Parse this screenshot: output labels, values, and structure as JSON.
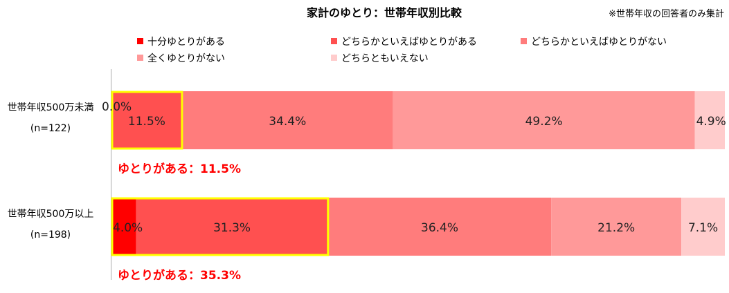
{
  "chart_data": {
    "type": "bar",
    "orientation": "horizontal-stacked-100",
    "title": "家計のゆとり：世帯年収別比較",
    "note": "※世帯年収の回答者のみ集計",
    "categories": [
      {
        "name": "世帯年収500万未満",
        "n": "(n=122)"
      },
      {
        "name": "世帯年収500万以上",
        "n": "(n=198)"
      }
    ],
    "series": [
      {
        "name": "十分ゆとりがある",
        "color": "#ff0000",
        "values": [
          0.0,
          4.0
        ]
      },
      {
        "name": "どちらかといえばゆとりがある",
        "color": "#ff5050",
        "values": [
          11.5,
          31.3
        ]
      },
      {
        "name": "どちらかといえばゆとりがない",
        "color": "#ff7c7c",
        "values": [
          34.4,
          36.4
        ]
      },
      {
        "name": "全くゆとりがない",
        "color": "#ff9999",
        "values": [
          49.2,
          21.2
        ]
      },
      {
        "name": "どちらともいえない",
        "color": "#ffcccc",
        "values": [
          4.9,
          7.1
        ]
      }
    ],
    "value_labels": [
      [
        "0.0%",
        "11.5%",
        "34.4%",
        "49.2%",
        "4.9%"
      ],
      [
        "4.0%",
        "31.3%",
        "36.4%",
        "21.2%",
        "7.1%"
      ]
    ],
    "callouts": [
      "ゆとりがある：11.5%",
      "ゆとりがある：35.3%"
    ],
    "highlight_color": "#ffff00",
    "callout_color": "#ff0000",
    "xlim": [
      0,
      100
    ],
    "legend_position": "top",
    "grid": false
  }
}
